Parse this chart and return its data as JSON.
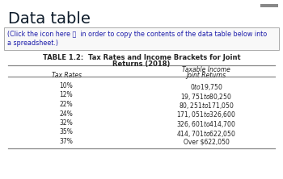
{
  "title_main": "Data table",
  "click_text_part1": "(Click the icon here ⎘  in order to copy the contents of the data table below into",
  "click_text_part2": "a spreadsheet.)",
  "table_title_line1": "TABLE 1.2:  Tax Rates and Income Brackets for Joint",
  "table_title_line2": "Returns (2018)",
  "col2_header1": "Taxable Income",
  "col1_header2": "Tax Rates",
  "col2_header2": "Joint Returns",
  "rows": [
    [
      "10%",
      "$0 to $19,750"
    ],
    [
      "12%",
      "$19,751 to $80,250"
    ],
    [
      "22%",
      "$80,251 to $171,050"
    ],
    [
      "24%",
      "$171,051 to $326,600"
    ],
    [
      "32%",
      "$326,601 to $414,700"
    ],
    [
      "35%",
      "$414,701 to $622,050"
    ],
    [
      "37%",
      "Over $622,050"
    ]
  ],
  "outer_bg": "#ffffff",
  "blue_text_color": "#1a1aaa",
  "black_text_color": "#0d1b2a",
  "table_text_color": "#222222",
  "line_color": "#888888",
  "top_bar_color": "#888888",
  "box_edge_color": "#aaaaaa",
  "box_face_color": "#f8f8f8"
}
